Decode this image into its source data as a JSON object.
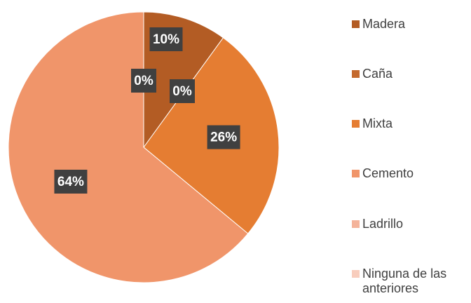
{
  "chart_data": {
    "type": "pie",
    "categories": [
      "Madera",
      "Caña",
      "Mixta",
      "Cemento",
      "Ladrillo",
      "Ninguna de las anteriores"
    ],
    "values": [
      10,
      0,
      26,
      64,
      0,
      0
    ],
    "value_labels": [
      "10%",
      "0%",
      "26%",
      "64%",
      "0%",
      null
    ],
    "colors": [
      "#b35c24",
      "#c46a2e",
      "#e57d32",
      "#f0956a",
      "#f4b39a",
      "#f8cdbd"
    ]
  }
}
